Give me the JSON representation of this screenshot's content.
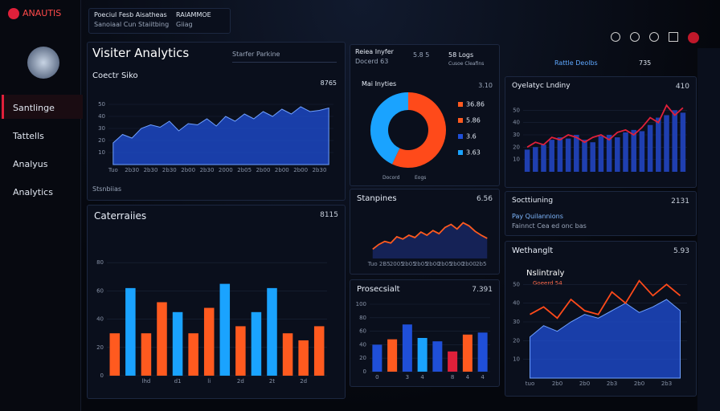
{
  "sidebar": {
    "brand": "ANAUTIS",
    "nav": [
      "Santlinge",
      "Tattells",
      "Analyus",
      "Analytics"
    ]
  },
  "topbar": {
    "tab_title": "Poeciul Fesb Aisatheas",
    "tab_sub": "Sanoiaal Cun Staiitbing",
    "tab2_title": "RAIAMMOE",
    "tab2_sub": "Giiag"
  },
  "header": {
    "title": "Visiter Analytics",
    "dropdown": "Starfer Parkine",
    "footer": "Stsnbiias"
  },
  "donut_panel": {
    "title": "Reiea Inyfer",
    "sub": "Docerd 63",
    "box1": "5.8 5",
    "box2": "58 Logs",
    "box2_sub": "Cusoe Cleafins",
    "bottom": [
      "Docord",
      "Eogs"
    ]
  },
  "toolbar": {
    "label": "Rattle Deolbs",
    "value": "735"
  },
  "notes": {
    "title": "Socttiuning",
    "readout": "2131",
    "line1": "Pay Quilannions",
    "line2": "Fainnct Cea ed onc bas"
  },
  "charts": [
    {
      "type": "area",
      "title": "Coectr Siko",
      "readout": "8765",
      "ylim": [
        0,
        60
      ],
      "yticks": [
        10,
        20,
        30,
        40,
        50
      ],
      "categories": [
        "Tuo",
        null,
        "2b30",
        null,
        "2b30",
        null,
        "2b30",
        null,
        "2b00",
        null,
        "2b30",
        null,
        "2000",
        null,
        "2b05",
        null,
        "2b00",
        null,
        "2b00",
        null,
        "2b00",
        null,
        "2b30",
        null
      ],
      "series": [
        {
          "kind": "area",
          "color": "#1f4fd8",
          "values": [
            18,
            25,
            22,
            30,
            33,
            31,
            36,
            28,
            34,
            33,
            38,
            32,
            40,
            36,
            42,
            38,
            44,
            40,
            46,
            42,
            48,
            44,
            45,
            47
          ]
        }
      ]
    },
    {
      "type": "bar",
      "title": "Caterraiies",
      "readout": "8115",
      "ylim": [
        0,
        100
      ],
      "yticks": [
        0,
        20,
        40,
        60,
        80
      ],
      "categories": [
        null,
        null,
        "lhd",
        null,
        "d1",
        null,
        "li",
        null,
        "2d",
        null,
        "2t",
        null,
        "2d",
        null
      ],
      "series": [
        {
          "kind": "bar",
          "values": [
            30,
            62,
            30,
            52,
            45,
            30,
            48,
            65,
            35,
            45,
            62,
            30,
            25,
            35
          ],
          "colors": [
            "#ff5a1f",
            "#1aa3ff",
            "#ff5a1f",
            "#ff5a1f",
            "#1aa3ff",
            "#ff5a1f",
            "#ff5a1f",
            "#1aa3ff",
            "#ff5a1f",
            "#1aa3ff",
            "#1aa3ff",
            "#ff5a1f",
            "#ff5a1f",
            "#ff5a1f"
          ]
        }
      ]
    },
    {
      "type": "pie",
      "title": "Mai Inyties",
      "readout": "3.10",
      "values": [
        57,
        43
      ],
      "colors": [
        "#ff4a1a",
        "#1aa3ff"
      ],
      "legend": [
        "36.86",
        "5.86",
        "3.6",
        "3.63"
      ],
      "legend_colors": [
        "#ff5a1f",
        "#ff5a1f",
        "#1f4fd8",
        "#1aa3ff"
      ]
    },
    {
      "type": "line",
      "title": "Stanpines",
      "readout": "6.56",
      "ylim": [
        0,
        60
      ],
      "yticks": [],
      "categories": [
        "Tuo",
        null,
        "2B5",
        null,
        "2005",
        null,
        "2b05",
        null,
        "2b05",
        null,
        "2b00",
        null,
        "2b05",
        null,
        "2b00",
        null,
        "2b00",
        null,
        "2b5",
        null
      ],
      "series": [
        {
          "kind": "line",
          "color": "#ff5a1f",
          "fill": "#1a2a6a",
          "values": [
            12,
            18,
            22,
            20,
            28,
            25,
            30,
            27,
            34,
            30,
            36,
            32,
            40,
            44,
            38,
            46,
            42,
            35,
            30,
            26
          ]
        }
      ]
    },
    {
      "type": "bar",
      "title": "Prosecsialt",
      "readout": "7.391",
      "ylim": [
        0,
        100
      ],
      "yticks": [
        0,
        20,
        40,
        60,
        80,
        100
      ],
      "categories": [
        "0",
        null,
        "3",
        "4",
        null,
        "8",
        "4",
        "4"
      ],
      "series": [
        {
          "kind": "bar",
          "values": [
            40,
            48,
            70,
            50,
            45,
            30,
            55,
            58
          ],
          "colors": [
            "#1f4fd8",
            "#ff5a1f",
            "#1f4fd8",
            "#1aa3ff",
            "#1f4fd8",
            "#e0203a",
            "#ff5a1f",
            "#1f4fd8"
          ]
        }
      ]
    },
    {
      "type": "combo",
      "title": "Oyelatyc Lndiny",
      "readout": "410",
      "ylim": [
        0,
        60
      ],
      "yticks": [
        10,
        20,
        30,
        40,
        50
      ],
      "categories": [],
      "series": [
        {
          "kind": "bar",
          "color": "#1f3fb0",
          "values": [
            18,
            20,
            22,
            26,
            28,
            27,
            30,
            26,
            24,
            29,
            30,
            28,
            32,
            34,
            33,
            38,
            44,
            46,
            50,
            48
          ]
        },
        {
          "kind": "line",
          "color": "#e0203a",
          "values": [
            20,
            24,
            22,
            28,
            26,
            30,
            28,
            24,
            28,
            30,
            26,
            32,
            34,
            30,
            36,
            44,
            40,
            54,
            46,
            52
          ]
        }
      ]
    },
    {
      "type": "combo",
      "title": "Wethanglt",
      "readout": "5.93",
      "legend": [
        "Nslintraly",
        "Goeerd 54"
      ],
      "ylim": [
        0,
        60
      ],
      "yticks": [
        10,
        20,
        30,
        40,
        50
      ],
      "categories": [
        "tuo",
        null,
        "2b0",
        null,
        "2b0",
        null,
        "2b3",
        null,
        "2b0",
        null,
        "2b3",
        null
      ],
      "series": [
        {
          "kind": "area",
          "color": "#1f4fd8",
          "values": [
            22,
            28,
            25,
            30,
            34,
            32,
            36,
            40,
            35,
            38,
            42,
            36
          ]
        },
        {
          "kind": "line",
          "color": "#ff4a1a",
          "values": [
            34,
            38,
            32,
            42,
            36,
            34,
            46,
            40,
            52,
            44,
            50,
            44
          ]
        }
      ]
    }
  ]
}
